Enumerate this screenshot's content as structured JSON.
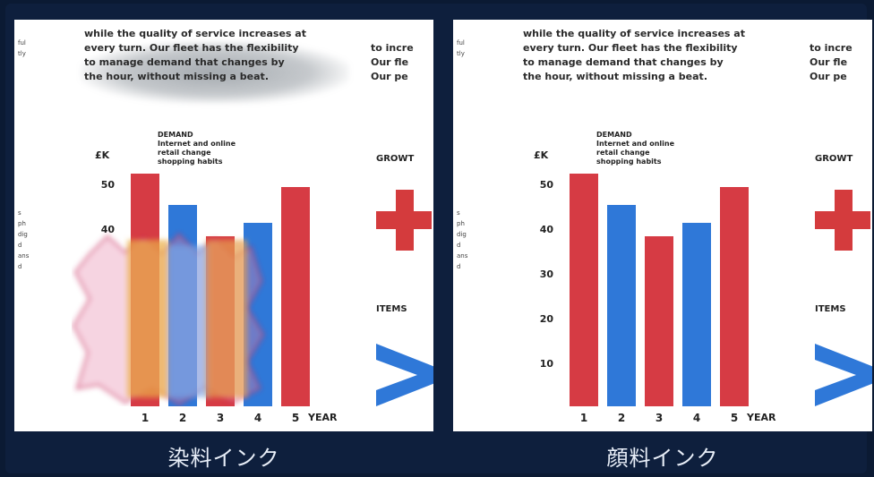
{
  "panels": [
    {
      "caption": "染料インク",
      "intro": [
        "while the quality of service increases at",
        "every turn. Our fleet has the flexibility",
        "to manage demand that changes by",
        "the hour, without missing a beat."
      ],
      "side_text": [
        "to incre",
        "Our fle",
        "Our pe"
      ],
      "far_left": [
        "ful",
        "tly"
      ],
      "far_left2": [
        "s",
        "ph",
        "dig",
        "d",
        "ans",
        "d"
      ],
      "ylabel": "£K",
      "demand": [
        "DEMAND",
        "Internet and online",
        "retail change",
        "shopping habits"
      ],
      "yticks": [
        "50",
        "40"
      ],
      "xticks": [
        "1",
        "2",
        "3",
        "4",
        "5"
      ],
      "xlabel": "YEAR",
      "growth": "GROWT",
      "items": "ITEMS"
    },
    {
      "caption": "顔料インク",
      "intro": [
        "while the quality of service increases at",
        "every turn. Our fleet has the flexibility",
        "to manage demand that changes by",
        "the hour, without missing a beat."
      ],
      "side_text": [
        "to incre",
        "Our fle",
        "Our pe"
      ],
      "far_left": [
        "ful",
        "tly"
      ],
      "far_left2": [
        "s",
        "ph",
        "dig",
        "d",
        "ans",
        "d"
      ],
      "ylabel": "£K",
      "demand": [
        "DEMAND",
        "Internet and online",
        "retail change",
        "shopping habits"
      ],
      "yticks": [
        "50",
        "40",
        "30",
        "20",
        "10"
      ],
      "xticks": [
        "1",
        "2",
        "3",
        "4",
        "5"
      ],
      "xlabel": "YEAR",
      "growth": "GROWT",
      "items": "ITEMS"
    }
  ],
  "chart_data": {
    "type": "bar",
    "categories": [
      "1",
      "2",
      "3",
      "4",
      "5"
    ],
    "values": [
      52,
      45,
      38,
      41,
      49
    ],
    "colors": [
      "#d63b44",
      "#2f78d8",
      "#d63b44",
      "#2f78d8",
      "#d63b44"
    ],
    "ylim": [
      0,
      60
    ],
    "ylabel": "£K",
    "xlabel": "YEAR"
  },
  "colors": {
    "red": "#d63b44",
    "blue": "#2f78d8",
    "background": "#0e1f3d"
  }
}
